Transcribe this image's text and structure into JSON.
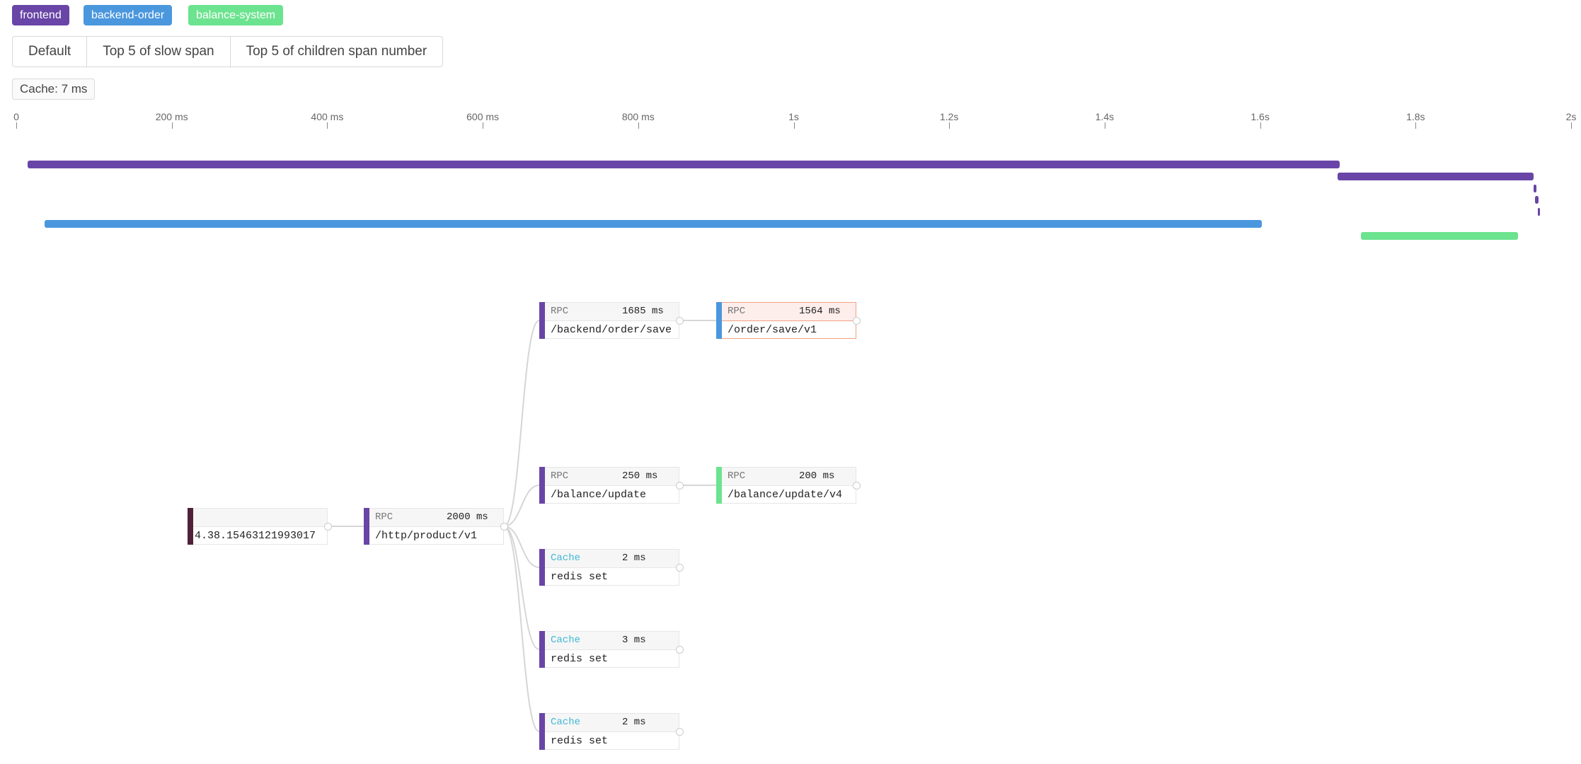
{
  "legend": [
    {
      "label": "frontend",
      "color": "#6845a6"
    },
    {
      "label": "backend-order",
      "color": "#4a97dd"
    },
    {
      "label": "balance-system",
      "color": "#6ce38f"
    }
  ],
  "view_modes": [
    "Default",
    "Top 5 of slow span",
    "Top 5 of children span number"
  ],
  "summary_badge": "Cache: 7 ms",
  "timeline": {
    "unit": "ms",
    "range": [
      0,
      2000
    ],
    "ticks": [
      {
        "value": 0,
        "label": "0"
      },
      {
        "value": 200,
        "label": "200 ms"
      },
      {
        "value": 400,
        "label": "400 ms"
      },
      {
        "value": 600,
        "label": "600 ms"
      },
      {
        "value": 800,
        "label": "800 ms"
      },
      {
        "value": 1000,
        "label": "1s"
      },
      {
        "value": 1200,
        "label": "1.2s"
      },
      {
        "value": 1400,
        "label": "1.4s"
      },
      {
        "value": 1600,
        "label": "1.6s"
      },
      {
        "value": 1800,
        "label": "1.8s"
      },
      {
        "value": 2000,
        "label": "2s"
      }
    ],
    "spans": [
      {
        "service": "frontend",
        "start": 15,
        "end": 1702
      },
      {
        "service": "frontend",
        "start": 1700,
        "end": 1952
      },
      {
        "service": "frontend",
        "start": 1952,
        "end": 1955
      },
      {
        "service": "frontend",
        "start": 1954,
        "end": 1958
      },
      {
        "service": "frontend",
        "start": 1957,
        "end": 1960
      },
      {
        "service": "backend-order",
        "start": 36,
        "end": 1602
      },
      {
        "service": "balance-system",
        "start": 1730,
        "end": 1932
      }
    ]
  },
  "tree": {
    "root": {
      "id": "root",
      "kind": "",
      "duration": "",
      "name": "4.38.15463121993017",
      "color": "#4f2239"
    },
    "nodes": [
      {
        "id": "n1",
        "parent": "root",
        "kind": "RPC",
        "duration": "2000 ms",
        "name": "/http/product/v1",
        "color": "#6845a6"
      },
      {
        "id": "n2",
        "parent": "n1",
        "kind": "RPC",
        "duration": "1685 ms",
        "name": "/backend/order/save",
        "color": "#6845a6"
      },
      {
        "id": "n3",
        "parent": "n2",
        "kind": "RPC",
        "duration": "1564 ms",
        "name": "/order/save/v1",
        "color": "#4a97dd",
        "highlighted": true
      },
      {
        "id": "n4",
        "parent": "n1",
        "kind": "RPC",
        "duration": "250 ms",
        "name": "/balance/update",
        "color": "#6845a6"
      },
      {
        "id": "n5",
        "parent": "n4",
        "kind": "RPC",
        "duration": "200 ms",
        "name": "/balance/update/v4",
        "color": "#6ce38f"
      },
      {
        "id": "n6",
        "parent": "n1",
        "kind": "Cache",
        "duration": "2 ms",
        "name": "redis set",
        "color": "#6845a6"
      },
      {
        "id": "n7",
        "parent": "n1",
        "kind": "Cache",
        "duration": "3 ms",
        "name": "redis set",
        "color": "#6845a6"
      },
      {
        "id": "n8",
        "parent": "n1",
        "kind": "Cache",
        "duration": "2 ms",
        "name": "redis set",
        "color": "#6845a6"
      }
    ],
    "kind_colors": {
      "RPC": "#777777",
      "Cache": "#3fb8d4"
    }
  }
}
